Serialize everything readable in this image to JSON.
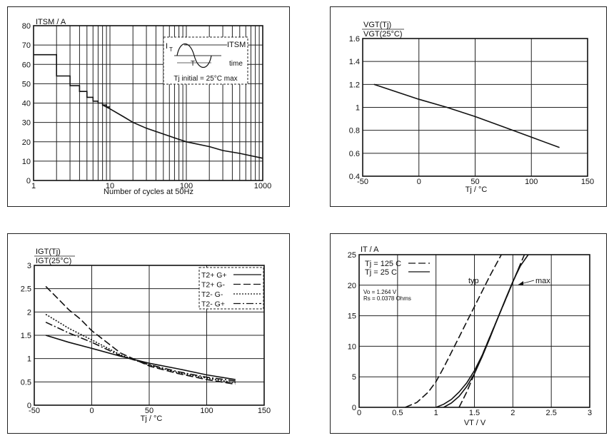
{
  "chart_data": [
    {
      "type": "line",
      "title": "ITSM / A",
      "xlabel": "Number of cycles at 50Hz",
      "x_scale": "log",
      "xlim": [
        1,
        1000
      ],
      "ylim": [
        0,
        80
      ],
      "xticks": [
        "1",
        "10",
        "100",
        "1000"
      ],
      "yticks": [
        "0",
        "10",
        "20",
        "30",
        "40",
        "50",
        "60",
        "70",
        "80"
      ],
      "grid": true,
      "series": [
        {
          "x": [
            1,
            2,
            2,
            3,
            3,
            4,
            4,
            5,
            5,
            6,
            6,
            7,
            7,
            8,
            8,
            9,
            9,
            10
          ],
          "y": [
            65,
            65,
            54,
            54,
            49,
            49,
            46,
            46,
            43,
            43,
            41,
            41,
            40,
            40,
            39,
            39,
            38,
            38
          ],
          "style": "step"
        },
        {
          "x": [
            8,
            10,
            15,
            20,
            30,
            50,
            70,
            100,
            200,
            300,
            500,
            1000
          ],
          "y": [
            39,
            37,
            33,
            30,
            27,
            24,
            22,
            20,
            17.5,
            15.5,
            14,
            11.5
          ]
        }
      ],
      "inset": {
        "it_label": "I",
        "it_sub": "T",
        "itsm_label": "ITSM",
        "t_label": "T",
        "time_label": "time",
        "note": "Tj initial = 25°C max"
      }
    },
    {
      "type": "line",
      "title_num": "VGT(Tj)",
      "title_den": "VGT(25°C)",
      "xlabel": "Tj / °C",
      "xlim": [
        -50,
        150
      ],
      "ylim": [
        0.4,
        1.6
      ],
      "xticks": [
        "-50",
        "0",
        "50",
        "100",
        "150"
      ],
      "yticks": [
        "0.4",
        "0.6",
        "0.8",
        "1",
        "1.2",
        "1.4",
        "1.6"
      ],
      "grid": true,
      "series": [
        {
          "x": [
            -40,
            0,
            25,
            50,
            75,
            100,
            125
          ],
          "y": [
            1.2,
            1.07,
            1.0,
            0.92,
            0.83,
            0.74,
            0.65
          ]
        }
      ]
    },
    {
      "type": "line",
      "title_num": "IGT(Tj)",
      "title_den": "IGT(25°C)",
      "xlabel": "Tj / °C",
      "xlim": [
        -50,
        150
      ],
      "ylim": [
        0,
        3
      ],
      "xticks": [
        "-50",
        "0",
        "50",
        "100",
        "150"
      ],
      "yticks": [
        "0",
        "0.5",
        "1",
        "1.5",
        "2",
        "2.5",
        "3"
      ],
      "grid": true,
      "legend_position": "top-right",
      "series": [
        {
          "name": "T2+ G+",
          "dash": "",
          "x": [
            -40,
            -20,
            0,
            25,
            50,
            75,
            100,
            125
          ],
          "y": [
            1.5,
            1.35,
            1.22,
            1.05,
            0.9,
            0.78,
            0.65,
            0.55
          ]
        },
        {
          "name": "T2+ G-",
          "dash": "10,4",
          "x": [
            -40,
            -30,
            -20,
            -10,
            0,
            25,
            50,
            75,
            100,
            125
          ],
          "y": [
            2.55,
            2.3,
            2.05,
            1.85,
            1.6,
            1.12,
            0.84,
            0.68,
            0.55,
            0.45
          ]
        },
        {
          "name": "T2- G-",
          "dash": "2,2",
          "x": [
            -40,
            -20,
            0,
            25,
            50,
            75,
            100,
            125
          ],
          "y": [
            1.95,
            1.65,
            1.4,
            1.08,
            0.86,
            0.7,
            0.58,
            0.48
          ]
        },
        {
          "name": "T2- G+",
          "dash": "10,3,2,3",
          "x": [
            -40,
            -20,
            0,
            25,
            50,
            75,
            100,
            125
          ],
          "y": [
            1.78,
            1.55,
            1.35,
            1.06,
            0.87,
            0.72,
            0.6,
            0.52
          ]
        }
      ]
    },
    {
      "type": "line",
      "title": "IT / A",
      "xlabel": "VT / V",
      "xlim": [
        0,
        3
      ],
      "ylim": [
        0,
        25
      ],
      "xticks": [
        "0",
        "0.5",
        "1",
        "1.5",
        "2",
        "2.5",
        "3"
      ],
      "yticks": [
        "0",
        "5",
        "10",
        "15",
        "20",
        "25"
      ],
      "grid": true,
      "legend": [
        {
          "name": "Tj = 125 C",
          "dash": "10,4"
        },
        {
          "name": "Tj = 25 C",
          "dash": ""
        }
      ],
      "params": [
        "Vo = 1.264 V",
        "Rs = 0.0378 Ohms"
      ],
      "annotations": [
        "typ",
        "max"
      ],
      "series": [
        {
          "name": "125C typ",
          "dash": "10,4",
          "x": [
            0.6,
            0.75,
            0.9,
            1.0,
            1.1,
            1.2,
            1.3,
            1.4,
            1.5,
            1.6,
            1.7,
            1.85
          ],
          "y": [
            0,
            0.8,
            2.5,
            4.2,
            6.5,
            9,
            11.5,
            14,
            16.5,
            19,
            21.5,
            25
          ]
        },
        {
          "name": "25C typ",
          "dash": "",
          "x": [
            1.0,
            1.1,
            1.2,
            1.3,
            1.4,
            1.5,
            1.6,
            1.7,
            1.8,
            1.9,
            2.0,
            2.1
          ],
          "y": [
            0,
            0.5,
            1.3,
            2.5,
            4.0,
            6.0,
            8.5,
            11.5,
            14.5,
            17.5,
            20.5,
            23.5
          ]
        },
        {
          "name": "25C max",
          "dash": "",
          "x": [
            1.1,
            1.2,
            1.3,
            1.4,
            1.5,
            1.6,
            1.7,
            1.8,
            1.9,
            2.0,
            2.1,
            2.2
          ],
          "y": [
            0,
            0.7,
            1.8,
            3.4,
            5.5,
            8.3,
            11.3,
            14.5,
            17.6,
            20.6,
            23.2,
            25
          ]
        },
        {
          "name": "125C max",
          "dash": "10,4",
          "x": [
            1.3,
            1.4,
            1.5,
            1.6,
            1.7,
            1.8,
            1.9,
            2.0,
            2.1,
            2.15
          ],
          "y": [
            0,
            2.5,
            5.5,
            8.5,
            11.5,
            14.5,
            17.5,
            20.5,
            23.5,
            25
          ]
        }
      ]
    }
  ]
}
